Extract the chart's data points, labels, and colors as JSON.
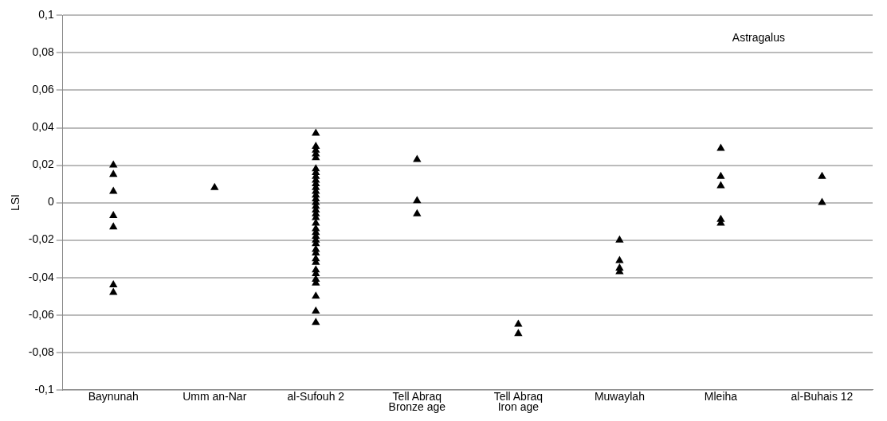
{
  "chart_data": {
    "type": "scatter",
    "ylabel": "LSI",
    "categories": [
      "Baynunah",
      "Umm an-Nar",
      "al-Sufouh 2",
      "Tell Abraq\nBronze age",
      "Tell Abraq\nIron age",
      "Muwaylah",
      "Mleiha",
      "al-Buhais 12"
    ],
    "series": [
      {
        "color": "#000000",
        "x": [
          "Baynunah",
          "Baynunah",
          "Baynunah",
          "Baynunah",
          "Baynunah",
          "Baynunah",
          "Baynunah",
          "Umm an-Nar",
          "al-Sufouh 2",
          "al-Sufouh 2",
          "al-Sufouh 2",
          "al-Sufouh 2",
          "al-Sufouh 2",
          "al-Sufouh 2",
          "al-Sufouh 2",
          "al-Sufouh 2",
          "al-Sufouh 2",
          "al-Sufouh 2",
          "al-Sufouh 2",
          "al-Sufouh 2",
          "al-Sufouh 2",
          "al-Sufouh 2",
          "al-Sufouh 2",
          "al-Sufouh 2",
          "al-Sufouh 2",
          "al-Sufouh 2",
          "al-Sufouh 2",
          "al-Sufouh 2",
          "al-Sufouh 2",
          "al-Sufouh 2",
          "al-Sufouh 2",
          "al-Sufouh 2",
          "al-Sufouh 2",
          "al-Sufouh 2",
          "al-Sufouh 2",
          "al-Sufouh 2",
          "al-Sufouh 2",
          "al-Sufouh 2",
          "al-Sufouh 2",
          "al-Sufouh 2",
          "al-Sufouh 2",
          "al-Sufouh 2",
          "al-Sufouh 2",
          "al-Sufouh 2",
          "Tell Abraq\nBronze age",
          "Tell Abraq\nBronze age",
          "Tell Abraq\nBronze age",
          "Tell Abraq\nIron age",
          "Tell Abraq\nIron age",
          "Muwaylah",
          "Muwaylah",
          "Muwaylah",
          "Muwaylah",
          "Mleiha",
          "Mleiha",
          "Mleiha",
          "Mleiha",
          "Mleiha",
          "al-Buhais 12",
          "al-Buhais 12"
        ],
        "values": [
          0.02,
          0.015,
          0.006,
          -0.007,
          -0.013,
          -0.044,
          -0.048,
          0.008,
          0.037,
          0.03,
          0.028,
          0.026,
          0.024,
          0.018,
          0.016,
          0.014,
          0.012,
          0.01,
          0.008,
          0.006,
          0.004,
          0.002,
          0,
          -0.002,
          -0.004,
          -0.006,
          -0.008,
          -0.011,
          -0.014,
          -0.016,
          -0.018,
          -0.02,
          -0.022,
          -0.025,
          -0.027,
          -0.03,
          -0.032,
          -0.036,
          -0.038,
          -0.041,
          -0.043,
          -0.05,
          -0.058,
          -0.064,
          0.023,
          0.001,
          -0.006,
          -0.065,
          -0.07,
          -0.02,
          -0.031,
          -0.035,
          -0.037,
          0.029,
          0.014,
          0.009,
          -0.009,
          -0.011,
          0.014,
          0
        ]
      }
    ],
    "ylim": [
      -0.1,
      0.1
    ],
    "yticks": [
      {
        "value": -0.1,
        "label": "-0,1"
      },
      {
        "value": -0.08,
        "label": "-0,08"
      },
      {
        "value": -0.06,
        "label": "-0,06"
      },
      {
        "value": -0.04,
        "label": "-0,04"
      },
      {
        "value": -0.02,
        "label": "-0,02"
      },
      {
        "value": 0,
        "label": "0"
      },
      {
        "value": 0.02,
        "label": "0,02"
      },
      {
        "value": 0.04,
        "label": "0,04"
      },
      {
        "value": 0.06,
        "label": "0,06"
      },
      {
        "value": 0.08,
        "label": "0,08"
      },
      {
        "value": 0.1,
        "label": "0,1"
      }
    ],
    "grid": "y",
    "marker": "triangle",
    "annotations": [
      "Astragalus"
    ]
  }
}
